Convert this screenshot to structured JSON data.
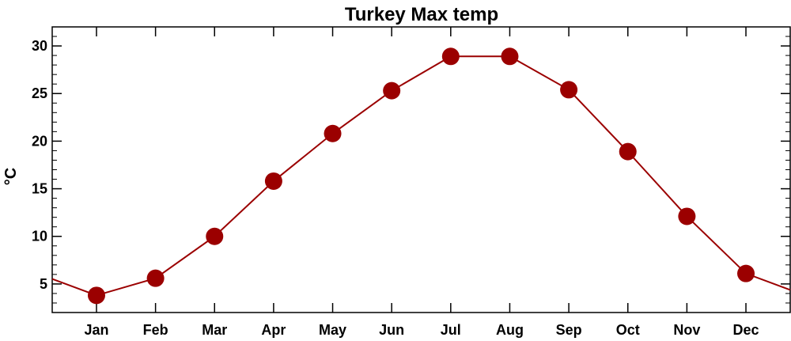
{
  "chart_data": {
    "type": "line",
    "title": "Turkey Max temp",
    "xlabel": "",
    "ylabel": "°C",
    "categories": [
      "Jan",
      "Feb",
      "Mar",
      "Apr",
      "May",
      "Jun",
      "Jul",
      "Aug",
      "Sep",
      "Oct",
      "Nov",
      "Dec"
    ],
    "series": [
      {
        "values": [
          3.8,
          5.6,
          10.0,
          15.8,
          20.8,
          25.3,
          28.9,
          28.9,
          25.4,
          18.9,
          12.1,
          6.1
        ]
      }
    ],
    "ylim": [
      2,
      32
    ],
    "yticks": [
      5,
      10,
      15,
      20,
      25,
      30
    ],
    "yticks_minor": [
      3,
      4,
      6,
      7,
      8,
      9,
      11,
      12,
      13,
      14,
      16,
      17,
      18,
      19,
      21,
      22,
      23,
      24,
      26,
      27,
      28,
      29,
      31
    ],
    "grid": false,
    "legend": "none",
    "wrap_ends": true,
    "colors": {
      "series": "#9b0000",
      "axis": "#000000"
    }
  }
}
